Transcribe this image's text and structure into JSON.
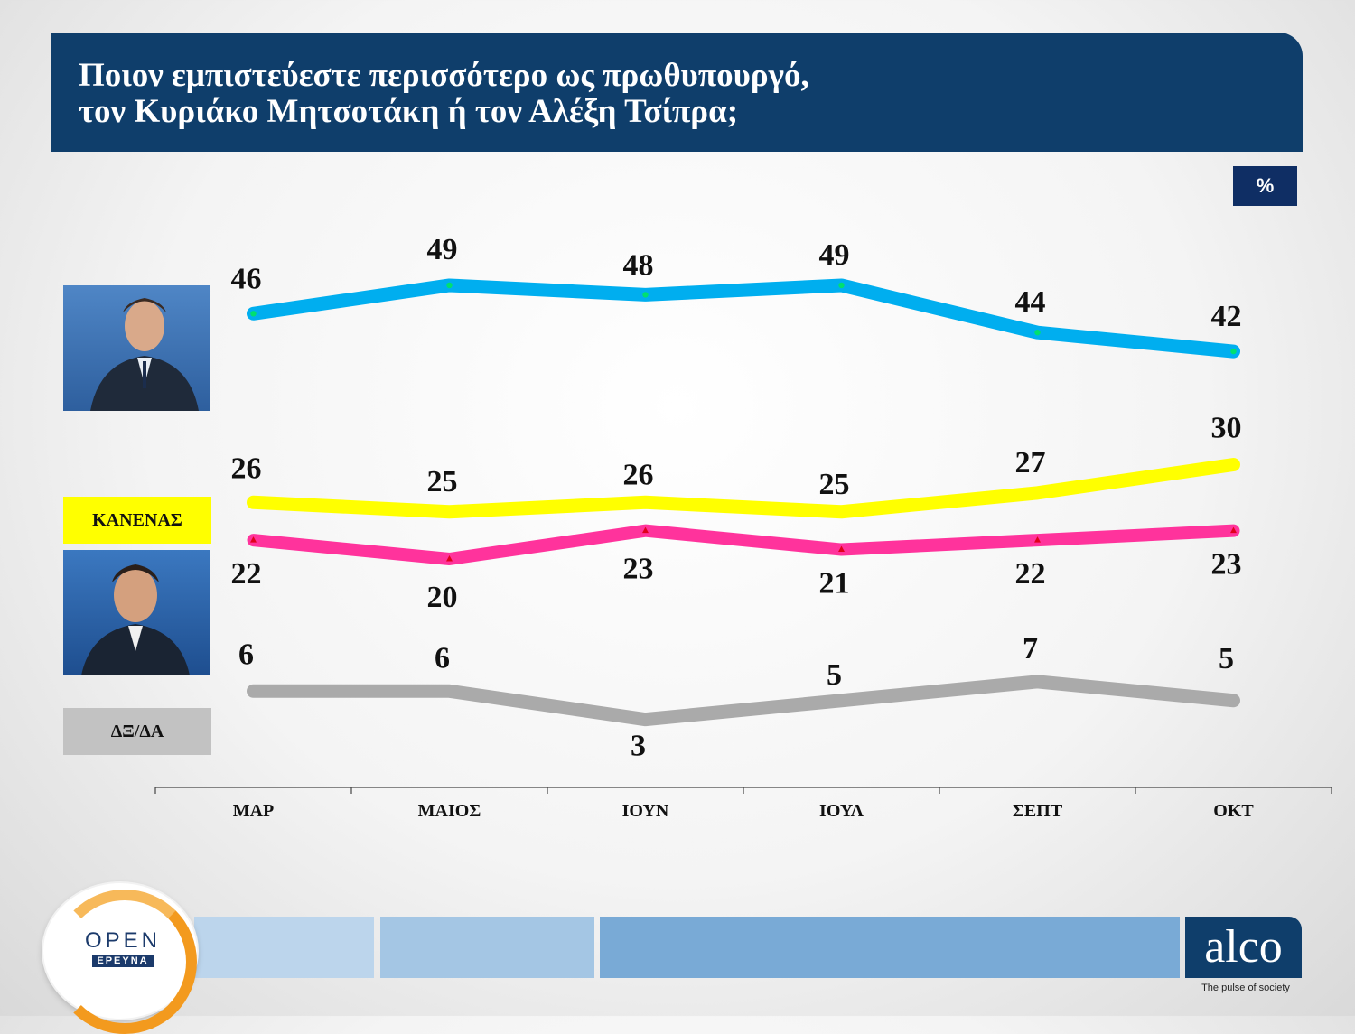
{
  "header": {
    "title_line1": "Ποιον εμπιστεύεστε περισσότερο ως πρωθυπουργό,",
    "title_line2": "τον Κυριάκο Μητσοτάκη ή τον Αλέξη Τσίπρα;"
  },
  "unit_badge": "%",
  "legend": {
    "none_label": "ΚΑΝΕΝΑΣ",
    "dk_label": "ΔΞ/ΔΑ"
  },
  "footer": {
    "open_word": "OPEN",
    "open_sub": "ΕΡΕΥΝΑ",
    "alco_word": "alco",
    "alco_tagline": "The pulse of society"
  },
  "colors": {
    "mitsotakis": "#00aeef",
    "none": "#ffff00",
    "tsipras": "#ff339c",
    "dk": "#aaaaaa",
    "header": "#0f3e6b"
  },
  "chart_data": {
    "type": "line",
    "title": "Ποιον εμπιστεύεστε περισσότερο ως πρωθυπουργό, τον Κυριάκο Μητσοτάκη ή τον Αλέξη Τσίπρα;",
    "unit": "%",
    "categories": [
      "ΜΑΡ",
      "ΜΑΙΟΣ",
      "ΙΟΥΝ",
      "ΙΟΥΛ",
      "ΣΕΠΤ",
      "ΟΚΤ"
    ],
    "series": [
      {
        "name": "Κυριάκος Μητσοτάκης",
        "key": "mitsotakis",
        "values": [
          46,
          49,
          48,
          49,
          44,
          42
        ]
      },
      {
        "name": "ΚΑΝΕΝΑΣ",
        "key": "none",
        "values": [
          26,
          25,
          26,
          25,
          27,
          30
        ]
      },
      {
        "name": "Αλέξης Τσίπρας",
        "key": "tsipras",
        "values": [
          22,
          20,
          23,
          21,
          22,
          23
        ]
      },
      {
        "name": "ΔΞ/ΔΑ",
        "key": "dk",
        "values": [
          6,
          6,
          3,
          5,
          7,
          5
        ]
      }
    ],
    "grid": false,
    "legend": "left"
  }
}
